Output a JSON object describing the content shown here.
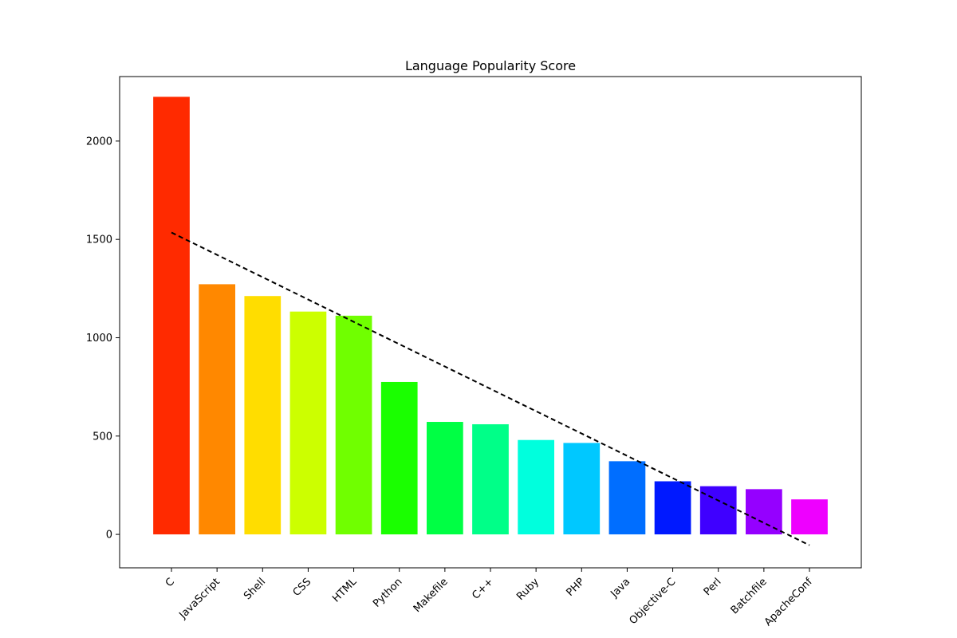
{
  "chart_data": {
    "type": "bar",
    "title": "Language Popularity Score",
    "xlabel": "",
    "ylabel": "",
    "categories": [
      "C",
      "JavaScript",
      "Shell",
      "CSS",
      "HTML",
      "Python",
      "Makefile",
      "C++",
      "Ruby",
      "PHP",
      "Java",
      "Objective-C",
      "Perl",
      "Batchfile",
      "ApacheConf"
    ],
    "values": [
      2225,
      1272,
      1212,
      1133,
      1112,
      775,
      572,
      560,
      480,
      465,
      372,
      270,
      245,
      230,
      178
    ],
    "bar_colors": [
      "#ff2a00",
      "#ff8800",
      "#ffdd00",
      "#ccff00",
      "#70ff00",
      "#1aff00",
      "#00ff44",
      "#00ff88",
      "#00ffdd",
      "#00c8ff",
      "#006eff",
      "#0019ff",
      "#3f00ff",
      "#9500ff",
      "#ee00ff"
    ],
    "trendline": {
      "style": "dashed",
      "color": "#000000",
      "start": 1535,
      "end": -55
    },
    "yticks": [
      0,
      500,
      1000,
      1500,
      2000
    ],
    "ylim": [
      -170,
      2328
    ],
    "grid": false,
    "legend": "none"
  }
}
